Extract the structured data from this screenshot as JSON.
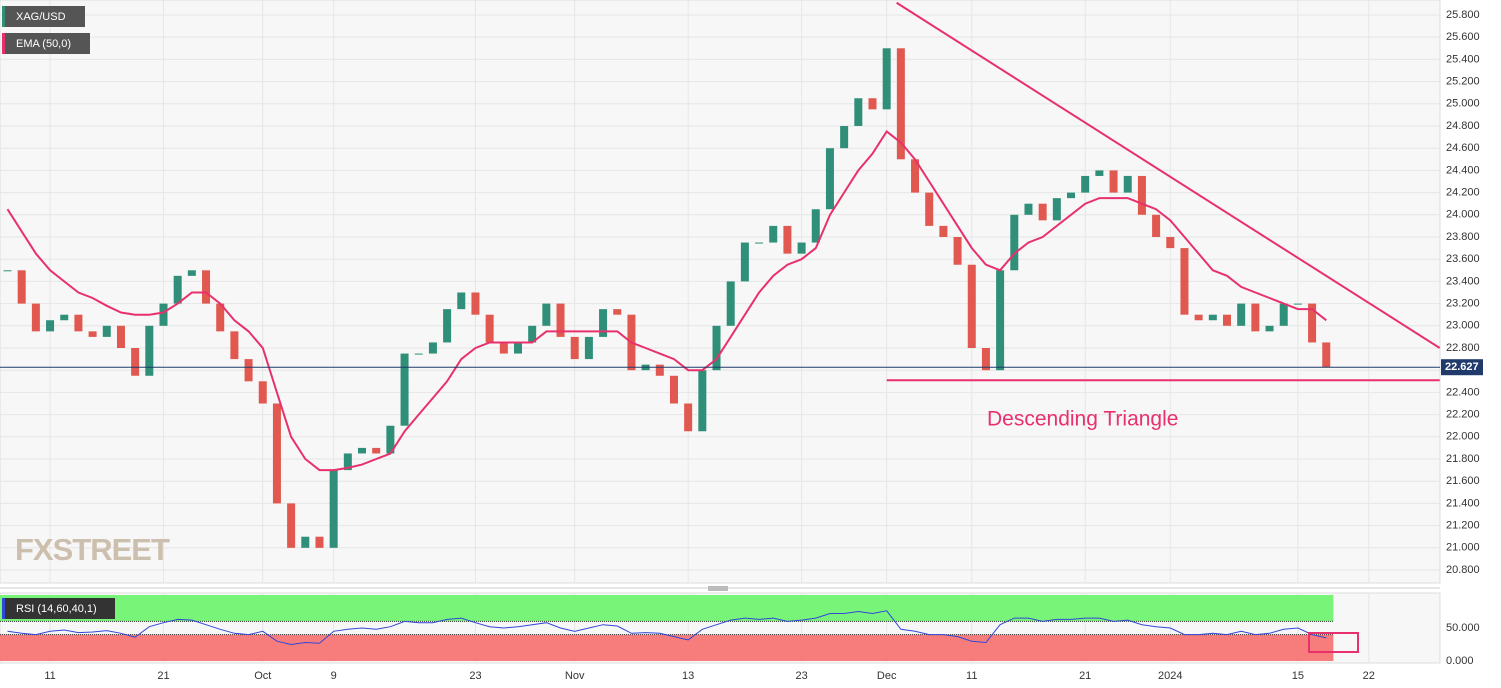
{
  "chart_data": [
    {
      "type": "candlestick",
      "watermark": "FXSTREET",
      "annotation": "Descending Triangle",
      "categories": [
        null,
        null,
        null,
        "11",
        null,
        null,
        null,
        null,
        null,
        null,
        null,
        "21",
        null,
        null,
        null,
        null,
        null,
        null,
        "Oct",
        null,
        null,
        null,
        null,
        "9",
        null,
        null,
        null,
        null,
        null,
        null,
        null,
        null,
        null,
        "23",
        null,
        null,
        null,
        null,
        null,
        null,
        "Nov",
        null,
        null,
        null,
        null,
        null,
        null,
        null,
        "13",
        null,
        null,
        null,
        null,
        null,
        null,
        null,
        "23",
        null,
        null,
        null,
        null,
        null,
        "Dec",
        null,
        null,
        null,
        null,
        null,
        "11",
        null,
        null,
        null,
        null,
        null,
        null,
        null,
        "21",
        null,
        null,
        null,
        null,
        null,
        "2024",
        null,
        null,
        null,
        null,
        null,
        null,
        null,
        null,
        "15",
        null,
        null,
        null,
        null,
        "22",
        null,
        null,
        null,
        null
      ],
      "series": [
        {
          "name": "XAG/USD",
          "up_color": "#2f8f78",
          "down_color": "#e0584f",
          "values": [
            23.5,
            23.2,
            22.95,
            23.05,
            23.1,
            22.95,
            22.9,
            23.0,
            22.8,
            22.55,
            23.0,
            23.2,
            23.45,
            23.5,
            23.2,
            22.95,
            22.7,
            22.5,
            22.3,
            21.4,
            21.0,
            21.1,
            21.0,
            21.7,
            21.85,
            21.9,
            21.85,
            22.1,
            22.75,
            22.75,
            22.85,
            23.15,
            23.3,
            23.1,
            22.85,
            22.75,
            22.85,
            23.0,
            23.2,
            22.9,
            22.7,
            22.9,
            23.15,
            23.1,
            22.6,
            22.65,
            22.55,
            22.3,
            22.05,
            22.6,
            23.0,
            23.4,
            23.75,
            23.75,
            23.9,
            23.65,
            23.75,
            24.05,
            24.6,
            24.8,
            25.05,
            24.95,
            25.5,
            24.5,
            24.2,
            23.9,
            23.8,
            23.55,
            22.8,
            22.6,
            23.5,
            24.0,
            24.1,
            23.95,
            24.15,
            24.2,
            24.35,
            24.4,
            24.2,
            24.35,
            24.0,
            23.8,
            23.7,
            23.1,
            23.05,
            23.1,
            23.0,
            23.2,
            22.95,
            23.0,
            23.2,
            23.2,
            22.85,
            22.627,
            null,
            null,
            null,
            null,
            null,
            null,
            null
          ]
        },
        {
          "name": "EMA (50,0)",
          "color": "#e8316c",
          "values": [
            24.05,
            23.85,
            23.65,
            23.5,
            23.4,
            23.3,
            23.25,
            23.18,
            23.12,
            23.1,
            23.1,
            23.12,
            23.2,
            23.3,
            23.3,
            23.2,
            23.05,
            22.95,
            22.8,
            22.4,
            22.0,
            21.8,
            21.7,
            21.7,
            21.72,
            21.75,
            21.8,
            21.85,
            22.05,
            22.2,
            22.35,
            22.5,
            22.7,
            22.8,
            22.85,
            22.85,
            22.85,
            22.85,
            22.95,
            22.95,
            22.95,
            22.95,
            22.95,
            22.95,
            22.85,
            22.8,
            22.75,
            22.7,
            22.6,
            22.6,
            22.7,
            22.9,
            23.1,
            23.3,
            23.45,
            23.55,
            23.6,
            23.7,
            24.0,
            24.2,
            24.4,
            24.55,
            24.75,
            24.65,
            24.5,
            24.3,
            24.1,
            23.9,
            23.7,
            23.55,
            23.5,
            23.65,
            23.75,
            23.8,
            23.9,
            24.0,
            24.1,
            24.15,
            24.15,
            24.15,
            24.1,
            24.05,
            23.95,
            23.8,
            23.65,
            23.5,
            23.45,
            23.35,
            23.3,
            23.25,
            23.2,
            23.15,
            23.15,
            23.05,
            null,
            null,
            null,
            null,
            null,
            null,
            null
          ]
        }
      ],
      "last_price_color": "#1f3a6b",
      "trendline_color": "#e8316c",
      "trendlines": [
        {
          "from": [
            62.7,
            25.91
          ],
          "to": [
            101,
            22.8
          ]
        },
        {
          "from": [
            62,
            22.51
          ],
          "to": [
            101,
            22.51
          ]
        }
      ],
      "ylim": [
        20.683,
        25.935
      ],
      "yticks": [
        {
          "value": 20.8,
          "label": "20.800"
        },
        {
          "value": 21.0,
          "label": "21.000"
        },
        {
          "value": 21.2,
          "label": "21.200"
        },
        {
          "value": 21.4,
          "label": "21.400"
        },
        {
          "value": 21.6,
          "label": "21.600"
        },
        {
          "value": 21.8,
          "label": "21.800"
        },
        {
          "value": 22.0,
          "label": "22.000"
        },
        {
          "value": 22.2,
          "label": "22.200"
        },
        {
          "value": 22.4,
          "label": "22.400"
        },
        {
          "value": 22.6,
          "label": "22.600"
        },
        {
          "value": 22.8,
          "label": "22.800"
        },
        {
          "value": 23.0,
          "label": "23.000"
        },
        {
          "value": 23.2,
          "label": "23.200"
        },
        {
          "value": 23.4,
          "label": "23.400"
        },
        {
          "value": 23.6,
          "label": "23.600"
        },
        {
          "value": 23.8,
          "label": "23.800"
        },
        {
          "value": 24.0,
          "label": "24.000"
        },
        {
          "value": 24.2,
          "label": "24.200"
        },
        {
          "value": 24.4,
          "label": "24.400"
        },
        {
          "value": 24.6,
          "label": "24.600"
        },
        {
          "value": 24.8,
          "label": "24.800"
        },
        {
          "value": 25.0,
          "label": "25.000"
        },
        {
          "value": 25.2,
          "label": "25.200"
        },
        {
          "value": 25.4,
          "label": "25.400"
        },
        {
          "value": 25.6,
          "label": "25.600"
        },
        {
          "value": 25.8,
          "label": "25.800"
        }
      ],
      "grid": true
    },
    {
      "type": "line",
      "series": [
        {
          "name": "RSI (14,60,40,1)",
          "color": "#3246d8",
          "values": [
            45,
            42,
            40,
            45,
            47,
            43,
            44,
            46,
            42,
            36,
            52,
            58,
            63,
            62,
            55,
            48,
            42,
            40,
            45,
            30,
            25,
            28,
            27,
            45,
            48,
            50,
            48,
            52,
            60,
            58,
            58,
            63,
            65,
            58,
            52,
            50,
            52,
            55,
            58,
            50,
            45,
            50,
            55,
            53,
            42,
            43,
            42,
            37,
            32,
            48,
            55,
            62,
            65,
            63,
            65,
            60,
            62,
            65,
            72,
            72,
            75,
            72,
            76,
            48,
            45,
            40,
            40,
            37,
            30,
            28,
            55,
            65,
            65,
            60,
            63,
            63,
            65,
            65,
            60,
            62,
            55,
            52,
            50,
            40,
            40,
            42,
            40,
            45,
            40,
            42,
            48,
            50,
            40,
            35,
            null,
            null,
            null,
            null,
            null,
            null,
            null
          ]
        }
      ],
      "bands": [
        {
          "from": 60,
          "to": 100,
          "color": "#78f478"
        },
        {
          "from": 0,
          "to": 40,
          "color": "#f77d7d"
        }
      ],
      "ylim": [
        0,
        100
      ],
      "yticks": [
        {
          "value": 50,
          "label": "50.000"
        },
        {
          "value": 0,
          "label": "0.000"
        }
      ]
    }
  ]
}
